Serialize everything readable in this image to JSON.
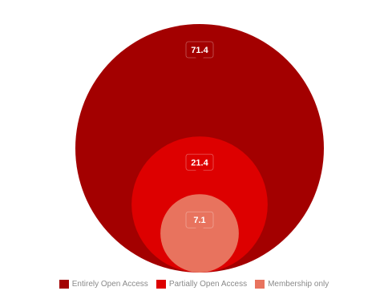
{
  "chart_data": {
    "type": "bubble",
    "title": "",
    "legend_position": "bottom",
    "series": [
      {
        "name": "Entirely Open Access",
        "value": 71.4,
        "color": "#a30000"
      },
      {
        "name": "Partially Open Access",
        "value": 21.4,
        "color": "#dd0000"
      },
      {
        "name": "Membership only",
        "value": 7.1,
        "color": "#e8735e"
      }
    ]
  }
}
